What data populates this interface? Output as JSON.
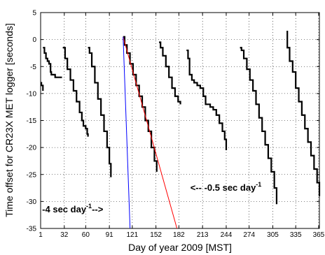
{
  "chart_data": {
    "type": "line",
    "title": "",
    "xlabel": "Day of year 2009 [MST]",
    "ylabel": "Time offset for CR23X MET logger [seconds]",
    "xlim": [
      1,
      366
    ],
    "ylim": [
      -35,
      5
    ],
    "xticks": [
      1,
      32,
      60,
      91,
      121,
      152,
      182,
      213,
      244,
      274,
      305,
      335,
      365
    ],
    "yticks": [
      5,
      0,
      -5,
      -10,
      -15,
      -20,
      -25,
      -30,
      -35
    ],
    "grid": true,
    "legend": "none",
    "series": [
      {
        "color": "#000000",
        "style": "step",
        "x": [
          1,
          2,
          3,
          4
        ],
        "y": [
          -8,
          -8.5,
          -8.5,
          -9.5
        ]
      },
      {
        "color": "#000000",
        "style": "step",
        "x": [
          4,
          6,
          8,
          10,
          12,
          14,
          15,
          17,
          20,
          23,
          26,
          29
        ],
        "y": [
          -1.5,
          -2.5,
          -3.5,
          -4,
          -4.5,
          -6,
          -6.5,
          -6.5,
          -7,
          -7,
          -7,
          -7
        ]
      },
      {
        "color": "#000000",
        "style": "step",
        "x": [
          30,
          33,
          36,
          40,
          44,
          48,
          52,
          55,
          57,
          60,
          62,
          63
        ],
        "y": [
          -1.5,
          -3.5,
          -5.5,
          -7.5,
          -9.5,
          -11.5,
          -13.5,
          -15,
          -16,
          -16.5,
          -17.5,
          -18
        ]
      },
      {
        "color": "#000000",
        "style": "step",
        "x": [
          63,
          65,
          68,
          72,
          76,
          80,
          84,
          88,
          91,
          93
        ],
        "y": [
          -1.5,
          -2.5,
          -5,
          -8,
          -11,
          -14,
          -17,
          -20,
          -23,
          -25.5
        ]
      },
      {
        "color": "#000000",
        "style": "step",
        "x": [
          109,
          111,
          114,
          118,
          122,
          126,
          130,
          134,
          138,
          142,
          146,
          150,
          153
        ],
        "y": [
          0.5,
          -1,
          -2.5,
          -4.5,
          -6.5,
          -8.5,
          -10.5,
          -12.5,
          -15,
          -17,
          -20,
          -22.5,
          -24.5
        ]
      },
      {
        "color": "#000000",
        "style": "step",
        "x": [
          156,
          158,
          161,
          165,
          169,
          173,
          177,
          181,
          184
        ],
        "y": [
          -0.5,
          -1.5,
          -3,
          -5,
          -7,
          -9,
          -10.5,
          -11.5,
          -12
        ]
      },
      {
        "color": "#000000",
        "style": "step",
        "x": [
          192,
          194,
          196,
          199,
          202,
          206,
          210,
          214,
          217,
          220,
          223,
          227,
          231,
          235,
          239,
          242,
          244
        ],
        "y": [
          -2,
          -3.5,
          -6.5,
          -7.5,
          -8,
          -8.5,
          -9,
          -10.5,
          -12,
          -12,
          -12.5,
          -13,
          -14,
          -15.5,
          -17,
          -18.5,
          -20.5
        ]
      },
      {
        "color": "#000000",
        "style": "step",
        "x": [
          262,
          264,
          267,
          271,
          275,
          279,
          283,
          287,
          291,
          295,
          299,
          303,
          307,
          310
        ],
        "y": [
          -1.5,
          -2,
          -3.5,
          -5.5,
          -7.5,
          -9.5,
          -12,
          -14.5,
          -17,
          -19.5,
          -22,
          -24.5,
          -27.5,
          -30.5
        ]
      },
      {
        "color": "#000000",
        "style": "step",
        "x": [
          323,
          324,
          327,
          331,
          335,
          339,
          343,
          347,
          351,
          355,
          359,
          363,
          366
        ],
        "y": [
          1.5,
          -1.5,
          -4,
          -6,
          -9,
          -11.5,
          -14,
          -16.5,
          -19,
          -21.5,
          -24,
          -26.5,
          -29
        ]
      },
      {
        "color": "#ff0000",
        "style": "line",
        "x": [
          109,
          179.5
        ],
        "y": [
          0.5,
          -35
        ]
      },
      {
        "color": "#0000ff",
        "style": "line",
        "x": [
          109,
          118.1
        ],
        "y": [
          0.5,
          -35
        ]
      }
    ],
    "annotations": [
      {
        "text": "<-- -0.5 sec day",
        "sup": "-1",
        "x": 197,
        "y": -28
      },
      {
        "text": "-4 sec day",
        "sup": "-1",
        "after": "-->",
        "x": 3,
        "y": -32
      }
    ]
  }
}
